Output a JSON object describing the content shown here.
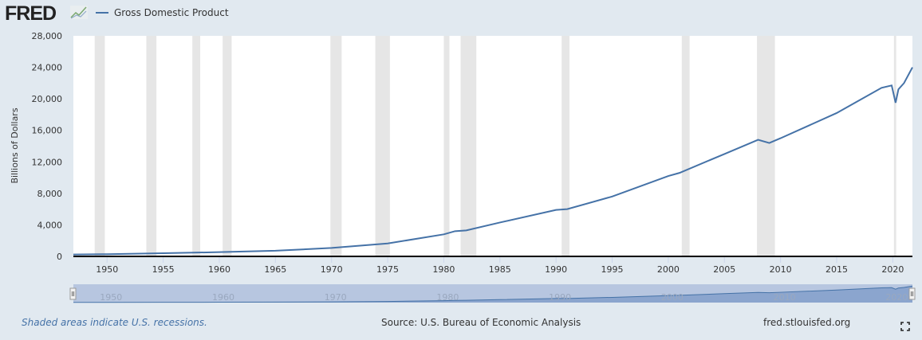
{
  "header": {
    "logo": "FRED",
    "series_name": "Gross Domestic Product"
  },
  "footer": {
    "note": "Shaded areas indicate U.S. recessions.",
    "source": "Source: U.S. Bureau of Economic Analysis",
    "site": "fred.stlouisfed.org",
    "fullscreen_icon": "fullscreen-icon"
  },
  "colors": {
    "line": "#4572a7",
    "recession": "#e6e6e6",
    "background": "#e1e9f0"
  },
  "chart_data": {
    "type": "line",
    "title": "Gross Domestic Product",
    "ylabel": "Billions of Dollars",
    "xlabel": "",
    "xlim": [
      1947,
      2021.75
    ],
    "ylim": [
      0,
      28000
    ],
    "yticks": [
      0,
      4000,
      8000,
      12000,
      16000,
      20000,
      24000,
      28000
    ],
    "ytick_labels": [
      "0",
      "4,000",
      "8,000",
      "12,000",
      "16,000",
      "20,000",
      "24,000",
      "28,000"
    ],
    "xticks": [
      1950,
      1955,
      1960,
      1965,
      1970,
      1975,
      1980,
      1985,
      1990,
      1995,
      2000,
      2005,
      2010,
      2015,
      2020
    ],
    "navigator_ticks": [
      1950,
      1960,
      1970,
      1980,
      1990,
      2000,
      2010,
      2020
    ],
    "recessions": [
      [
        1948.9,
        1949.8
      ],
      [
        1953.5,
        1954.4
      ],
      [
        1957.6,
        1958.3
      ],
      [
        1960.3,
        1961.1
      ],
      [
        1969.9,
        1970.9
      ],
      [
        1973.9,
        1975.2
      ],
      [
        1980.0,
        1980.5
      ],
      [
        1981.5,
        1982.9
      ],
      [
        1990.5,
        1991.2
      ],
      [
        2001.2,
        2001.9
      ],
      [
        2007.9,
        2009.5
      ],
      [
        2020.1,
        2020.3
      ]
    ],
    "series": [
      {
        "name": "Gross Domestic Product",
        "x": [
          1947,
          1950,
          1955,
          1960,
          1965,
          1970,
          1975,
          1980,
          1981,
          1982,
          1985,
          1990,
          1991,
          1995,
          2000,
          2001,
          2005,
          2008,
          2009,
          2010,
          2015,
          2019,
          2019.9,
          2020.25,
          2020.5,
          2021,
          2021.75
        ],
        "values": [
          243,
          280,
          400,
          540,
          720,
          1070,
          1640,
          2800,
          3200,
          3300,
          4300,
          5900,
          6000,
          7600,
          10200,
          10600,
          13000,
          14800,
          14400,
          15000,
          18200,
          21400,
          21700,
          19500,
          21200,
          22000,
          24000
        ]
      }
    ]
  }
}
